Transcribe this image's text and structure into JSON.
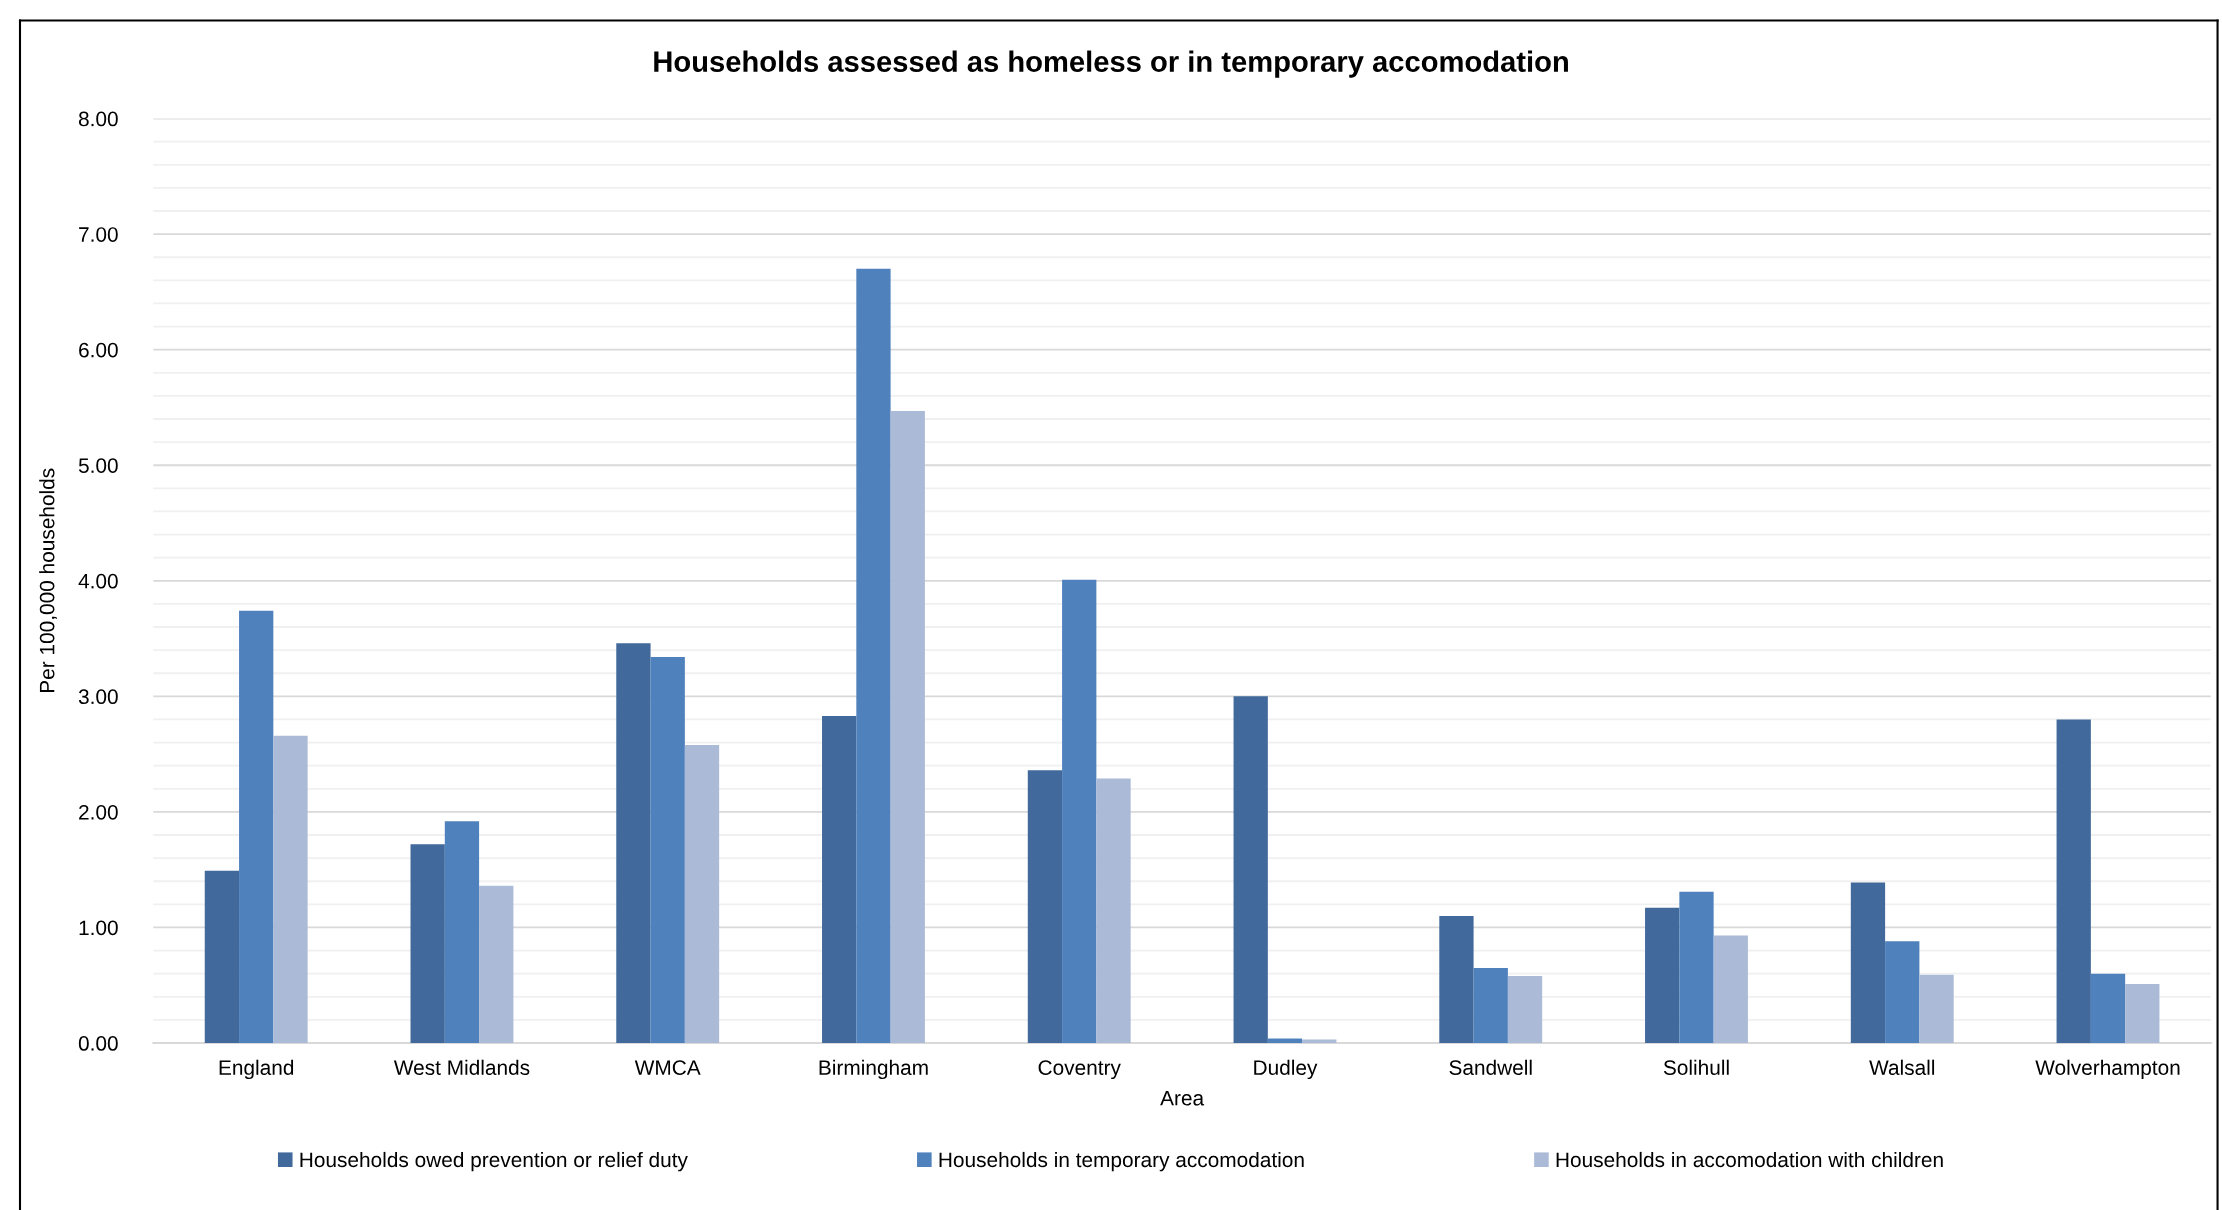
{
  "chart_data": {
    "type": "bar",
    "title": "Households assessed as homeless or in temporary accomodation",
    "xlabel": "Area",
    "ylabel": "Per 100,000 households",
    "categories": [
      "England",
      "West Midlands",
      "WMCA",
      "Birmingham",
      "Coventry",
      "Dudley",
      "Sandwell",
      "Solihull",
      "Walsall",
      "Wolverhampton"
    ],
    "series": [
      {
        "name": "Households owed prevention or relief duty",
        "color": "#41699b",
        "values": [
          1.49,
          1.72,
          3.46,
          2.83,
          2.36,
          3.0,
          1.1,
          1.17,
          1.39,
          2.8
        ]
      },
      {
        "name": "Households in temporary accomodation",
        "color": "#4f81bd",
        "values": [
          3.74,
          1.92,
          3.34,
          6.7,
          4.01,
          0.04,
          0.65,
          1.31,
          0.88,
          0.6
        ]
      },
      {
        "name": "Households in accomodation with children",
        "color": "#aabad7",
        "values": [
          2.66,
          1.36,
          2.58,
          5.47,
          2.29,
          0.03,
          0.58,
          0.93,
          0.59,
          0.51
        ]
      }
    ],
    "ylim": [
      0,
      8
    ],
    "yticks": [
      {
        "value": 0,
        "label": "0.00"
      },
      {
        "value": 0.2,
        "label": null
      },
      {
        "value": 0.4,
        "label": null
      },
      {
        "value": 0.6,
        "label": null
      },
      {
        "value": 0.8,
        "label": null
      },
      {
        "value": 1,
        "label": "1.00"
      },
      {
        "value": 1.2,
        "label": null
      },
      {
        "value": 1.4,
        "label": null
      },
      {
        "value": 1.6,
        "label": null
      },
      {
        "value": 1.8,
        "label": null
      },
      {
        "value": 2,
        "label": "2.00"
      },
      {
        "value": 2.2,
        "label": null
      },
      {
        "value": 2.4,
        "label": null
      },
      {
        "value": 2.6,
        "label": null
      },
      {
        "value": 2.8,
        "label": null
      },
      {
        "value": 3,
        "label": "3.00"
      },
      {
        "value": 3.2,
        "label": null
      },
      {
        "value": 3.4,
        "label": null
      },
      {
        "value": 3.6,
        "label": null
      },
      {
        "value": 3.8,
        "label": null
      },
      {
        "value": 4,
        "label": "4.00"
      },
      {
        "value": 4.2,
        "label": null
      },
      {
        "value": 4.4,
        "label": null
      },
      {
        "value": 4.6,
        "label": null
      },
      {
        "value": 4.8,
        "label": null
      },
      {
        "value": 5,
        "label": "5.00"
      },
      {
        "value": 5.2,
        "label": null
      },
      {
        "value": 5.4,
        "label": null
      },
      {
        "value": 5.6,
        "label": null
      },
      {
        "value": 5.8,
        "label": null
      },
      {
        "value": 6,
        "label": "6.00"
      },
      {
        "value": 6.2,
        "label": null
      },
      {
        "value": 6.4,
        "label": null
      },
      {
        "value": 6.6,
        "label": null
      },
      {
        "value": 6.8,
        "label": null
      },
      {
        "value": 7,
        "label": "7.00"
      },
      {
        "value": 7.2,
        "label": null
      },
      {
        "value": 7.4,
        "label": null
      },
      {
        "value": 7.6,
        "label": null
      },
      {
        "value": 7.8,
        "label": null
      },
      {
        "value": 8,
        "label": "8.00"
      }
    ],
    "grid": "y",
    "legend": "bottom"
  }
}
